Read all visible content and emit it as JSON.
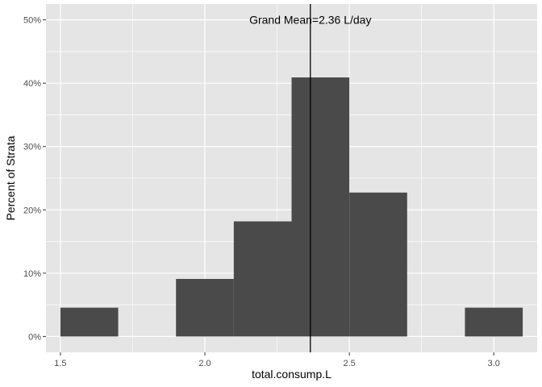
{
  "chart_data": {
    "type": "bar",
    "subtype": "histogram",
    "xlabel": "total.consump.L",
    "ylabel": "Percent of Strata",
    "xlim": [
      1.45,
      3.15
    ],
    "ylim": [
      -0.025,
      0.525
    ],
    "x_ticks": [
      {
        "value": 1.5,
        "label": "1.5"
      },
      {
        "value": 2.0,
        "label": "2.0"
      },
      {
        "value": 2.5,
        "label": "2.5"
      },
      {
        "value": 3.0,
        "label": "3.0"
      }
    ],
    "y_ticks": [
      {
        "value": 0.0,
        "label": "0%"
      },
      {
        "value": 0.1,
        "label": "10%"
      },
      {
        "value": 0.2,
        "label": "20%"
      },
      {
        "value": 0.3,
        "label": "30%"
      },
      {
        "value": 0.4,
        "label": "40%"
      },
      {
        "value": 0.5,
        "label": "50%"
      }
    ],
    "bins": [
      {
        "x0": 1.5,
        "x1": 1.7,
        "value": 0.0455
      },
      {
        "x0": 1.7,
        "x1": 1.9,
        "value": 0.0
      },
      {
        "x0": 1.9,
        "x1": 2.1,
        "value": 0.0909
      },
      {
        "x0": 2.1,
        "x1": 2.3,
        "value": 0.1818
      },
      {
        "x0": 2.3,
        "x1": 2.5,
        "value": 0.4091
      },
      {
        "x0": 2.5,
        "x1": 2.7,
        "value": 0.2273
      },
      {
        "x0": 2.7,
        "x1": 2.9,
        "value": 0.0
      },
      {
        "x0": 2.9,
        "x1": 3.1,
        "value": 0.0455
      }
    ],
    "vline": {
      "x": 2.365,
      "label": "Grand Mean=2.36 L/day"
    },
    "grid": true,
    "colors": {
      "panel": "#e5e5e5",
      "grid_major": "#ffffff",
      "bar": "#4a4a4a",
      "vline": "#000000",
      "tick_text": "#4d4d4d"
    }
  }
}
